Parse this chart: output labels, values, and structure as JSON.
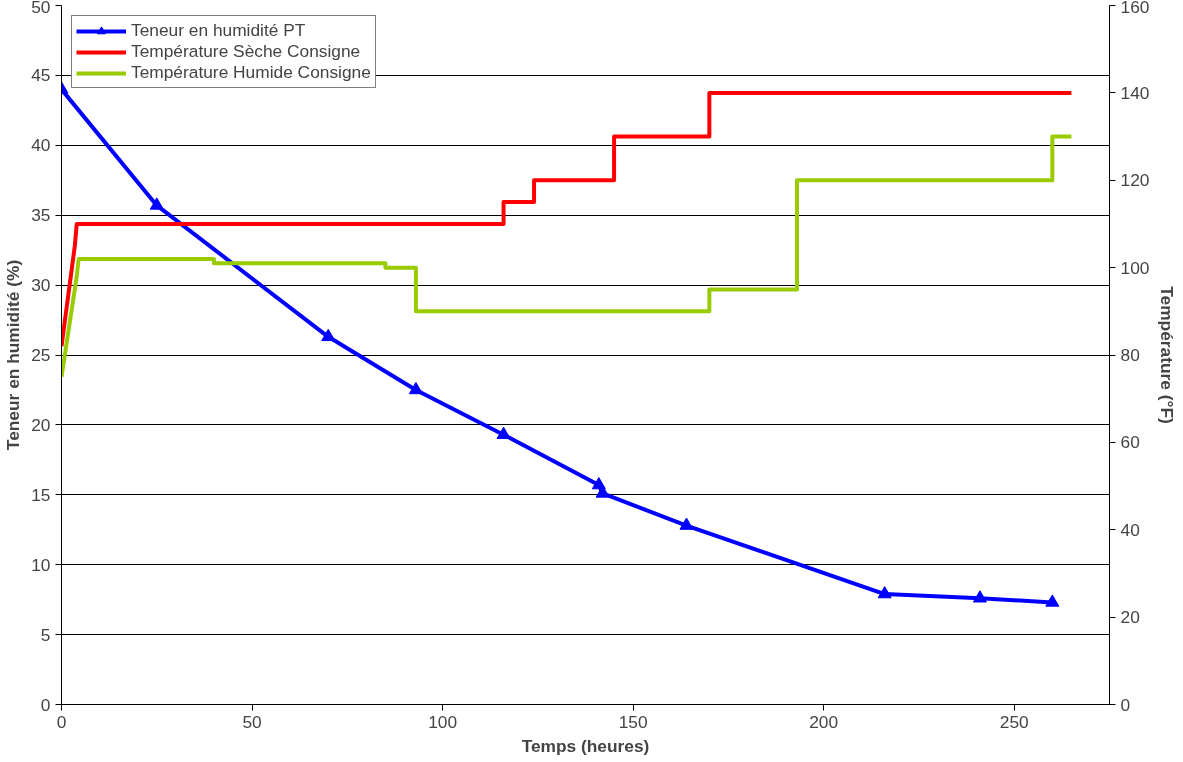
{
  "chart_data": {
    "type": "line",
    "xlabel": "Temps (heures)",
    "ylabel": "Teneur en humidité (%)",
    "y2label": "Température (°F)",
    "xlim": [
      0,
      275
    ],
    "xticks": [
      0,
      50,
      100,
      150,
      200,
      250
    ],
    "ylim": [
      0,
      50
    ],
    "yticks": [
      0,
      5,
      10,
      15,
      20,
      25,
      30,
      35,
      40,
      45,
      50
    ],
    "y2lim": [
      0,
      160
    ],
    "y2ticks": [
      0,
      20,
      40,
      60,
      80,
      100,
      120,
      140,
      160
    ],
    "grid": "y",
    "legend": "top left",
    "series": [
      {
        "name": "Teneur en humidité PT",
        "color": "#0000ff",
        "marker": "triangle",
        "x": [
          0,
          25,
          70,
          93,
          116,
          141,
          142,
          164,
          216,
          241,
          260
        ],
        "values": [
          44,
          35.7,
          26.3,
          22.5,
          19.3,
          15.7,
          15.1,
          12.8,
          7.9,
          7.6,
          7.3
        ]
      },
      {
        "name": "Température Sèche Consigne",
        "color": "#ff0000",
        "axis": "y2",
        "x": [
          0,
          3.5,
          4,
          116,
          116,
          124,
          124,
          145,
          145,
          170,
          170,
          265
        ],
        "values": [
          82,
          105,
          110,
          110,
          115,
          115,
          120,
          120,
          130,
          130,
          140,
          140
        ]
      },
      {
        "name": "Température Humide Consigne",
        "color": "#99cc00",
        "axis": "y2",
        "x": [
          0,
          4,
          4.5,
          40,
          40,
          85,
          85,
          93,
          93,
          170,
          170,
          193,
          193,
          260,
          260,
          265
        ],
        "values": [
          75,
          98,
          102,
          102,
          101,
          101,
          100,
          100,
          90,
          90,
          95,
          95,
          120,
          120,
          130,
          130
        ]
      }
    ]
  }
}
